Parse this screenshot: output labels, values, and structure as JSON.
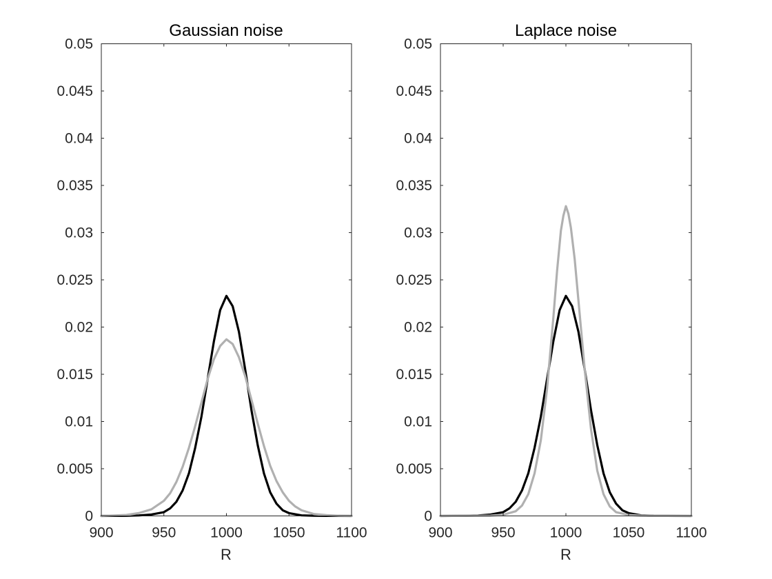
{
  "colors": {
    "black_series": "#000000",
    "gray_series": "#b0b0b0",
    "axis": "#262626"
  },
  "chart_data": [
    {
      "type": "line",
      "title": "Gaussian noise",
      "xlabel": "R",
      "ylabel": "",
      "xlim": [
        900,
        1100
      ],
      "ylim": [
        0,
        0.05
      ],
      "xticks": [
        "900",
        "950",
        "1000",
        "1050",
        "1100"
      ],
      "yticks": [
        "0",
        "0.005",
        "0.01",
        "0.015",
        "0.02",
        "0.025",
        "0.03",
        "0.035",
        "0.04",
        "0.045",
        "0.05"
      ],
      "grid": false,
      "legend": "none",
      "series": [
        {
          "color": "#000000",
          "x": [
            900,
            920,
            930,
            940,
            950,
            955,
            960,
            965,
            970,
            975,
            980,
            985,
            990,
            995,
            1000,
            1005,
            1010,
            1015,
            1020,
            1025,
            1030,
            1035,
            1040,
            1045,
            1050,
            1060,
            1070,
            1080,
            1100
          ],
          "y": [
            0,
            2e-05,
            5e-05,
            0.00015,
            0.0004,
            0.0008,
            0.0015,
            0.0027,
            0.0045,
            0.0072,
            0.0105,
            0.0145,
            0.0185,
            0.0218,
            0.0233,
            0.0222,
            0.0195,
            0.0155,
            0.0112,
            0.0075,
            0.0045,
            0.0025,
            0.0013,
            0.0006,
            0.0003,
            6e-05,
            2e-05,
            1e-05,
            0
          ]
        },
        {
          "color": "#b0b0b0",
          "x": [
            900,
            910,
            920,
            930,
            940,
            950,
            955,
            960,
            965,
            970,
            975,
            980,
            985,
            990,
            995,
            1000,
            1005,
            1010,
            1015,
            1020,
            1025,
            1030,
            1035,
            1040,
            1045,
            1050,
            1055,
            1060,
            1070,
            1080,
            1090,
            1100
          ],
          "y": [
            0,
            5e-05,
            0.0001,
            0.0003,
            0.0007,
            0.0016,
            0.0024,
            0.0036,
            0.0052,
            0.0072,
            0.0095,
            0.012,
            0.0145,
            0.0166,
            0.018,
            0.0187,
            0.0182,
            0.0168,
            0.0148,
            0.0123,
            0.0098,
            0.0074,
            0.0053,
            0.0037,
            0.0025,
            0.0016,
            0.001,
            0.0006,
            0.0002,
            8e-05,
            2e-05,
            0
          ]
        }
      ]
    },
    {
      "type": "line",
      "title": "Laplace noise",
      "xlabel": "R",
      "ylabel": "",
      "xlim": [
        900,
        1100
      ],
      "ylim": [
        0,
        0.05
      ],
      "xticks": [
        "900",
        "950",
        "1000",
        "1050",
        "1100"
      ],
      "yticks": [
        "0",
        "0.005",
        "0.01",
        "0.015",
        "0.02",
        "0.025",
        "0.03",
        "0.035",
        "0.04",
        "0.045",
        "0.05"
      ],
      "grid": false,
      "legend": "none",
      "series": [
        {
          "color": "#000000",
          "x": [
            900,
            920,
            930,
            940,
            950,
            955,
            960,
            965,
            970,
            975,
            980,
            985,
            990,
            995,
            1000,
            1005,
            1010,
            1015,
            1020,
            1025,
            1030,
            1035,
            1040,
            1045,
            1050,
            1060,
            1070,
            1080,
            1100
          ],
          "y": [
            0,
            2e-05,
            5e-05,
            0.00015,
            0.0004,
            0.0008,
            0.0015,
            0.0027,
            0.0045,
            0.0072,
            0.0105,
            0.0145,
            0.0185,
            0.0218,
            0.0233,
            0.0222,
            0.0195,
            0.0155,
            0.0112,
            0.0075,
            0.0045,
            0.0025,
            0.0013,
            0.0006,
            0.0003,
            6e-05,
            2e-05,
            1e-05,
            0
          ]
        },
        {
          "color": "#b0b0b0",
          "x": [
            900,
            940,
            950,
            960,
            965,
            970,
            975,
            980,
            985,
            990,
            993,
            996,
            998,
            1000,
            1002,
            1004,
            1007,
            1010,
            1015,
            1020,
            1025,
            1030,
            1035,
            1040,
            1050,
            1060,
            1070,
            1100
          ],
          "y": [
            0,
            3e-05,
            0.00012,
            0.0005,
            0.0011,
            0.0023,
            0.0045,
            0.008,
            0.0135,
            0.021,
            0.026,
            0.0302,
            0.0318,
            0.0328,
            0.032,
            0.0305,
            0.0272,
            0.0228,
            0.0155,
            0.0092,
            0.0048,
            0.0023,
            0.001,
            0.0004,
            0.0001,
            3e-05,
            1e-05,
            0
          ]
        }
      ]
    }
  ]
}
